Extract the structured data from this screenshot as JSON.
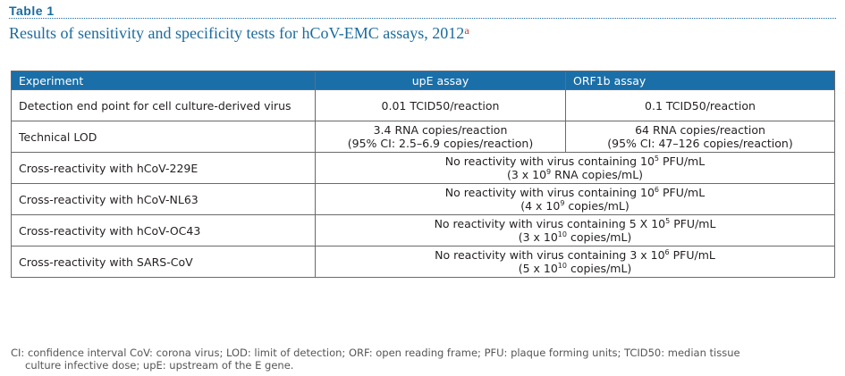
{
  "header": {
    "table_label": "Table 1",
    "caption": "Results of sensitivity and specificity tests for hCoV-EMC assays, 2012",
    "caption_mark": "a"
  },
  "table": {
    "columns": [
      "Experiment",
      "upE assay",
      "ORF1b assay"
    ],
    "rows": [
      {
        "experiment": "Detection end point for cell culture-derived virus",
        "upe": [
          "0.01 TCID50/reaction"
        ],
        "orf1b": [
          "0.1 TCID50/reaction"
        ]
      },
      {
        "experiment": "Technical LOD",
        "upe": [
          "3.4 RNA copies/reaction",
          "(95% CI: 2.5–6.9 copies/reaction)"
        ],
        "orf1b": [
          "64 RNA copies/reaction",
          "(95% CI: 47–126 copies/reaction)"
        ]
      },
      {
        "experiment": "Cross-reactivity with hCoV-229E",
        "span_line1_pre": "No reactivity with virus containing 10",
        "span_line1_sup": "5",
        "span_line1_post": " PFU/mL",
        "span_line2_pre": "(3 x 10",
        "span_line2_sup": "9",
        "span_line2_post": " RNA copies/mL)"
      },
      {
        "experiment": "Cross-reactivity with hCoV-NL63",
        "span_line1_pre": "No reactivity with virus containing 10",
        "span_line1_sup": "6",
        "span_line1_post": " PFU/mL",
        "span_line2_pre": "(4 x 10",
        "span_line2_sup": "9",
        "span_line2_post": " copies/mL)"
      },
      {
        "experiment": "Cross-reactivity with hCoV-OC43",
        "span_line1_pre": "No reactivity with virus containing 5 X 10",
        "span_line1_sup": "5",
        "span_line1_post": " PFU/mL",
        "span_line2_pre": "(3 x 10",
        "span_line2_sup": "10",
        "span_line2_post": " copies/mL)"
      },
      {
        "experiment": "Cross-reactivity with SARS-CoV",
        "span_line1_pre": "No reactivity with virus containing 3 x 10",
        "span_line1_sup": "6",
        "span_line1_post": " PFU/mL",
        "span_line2_pre": "(5 x 10",
        "span_line2_sup": "10",
        "span_line2_post": " copies/mL)"
      }
    ]
  },
  "footnote": {
    "line1": "CI: confidence interval CoV: corona virus; LOD: limit of detection; ORF: open reading frame; PFU: plaque forming units; TCID50: median tissue",
    "line2": "culture infective dose; upE: upstream of the E gene."
  },
  "colors": {
    "accent": "#1b6b9e",
    "header_fill": "#1b6fa8",
    "mark": "#c0392b"
  }
}
